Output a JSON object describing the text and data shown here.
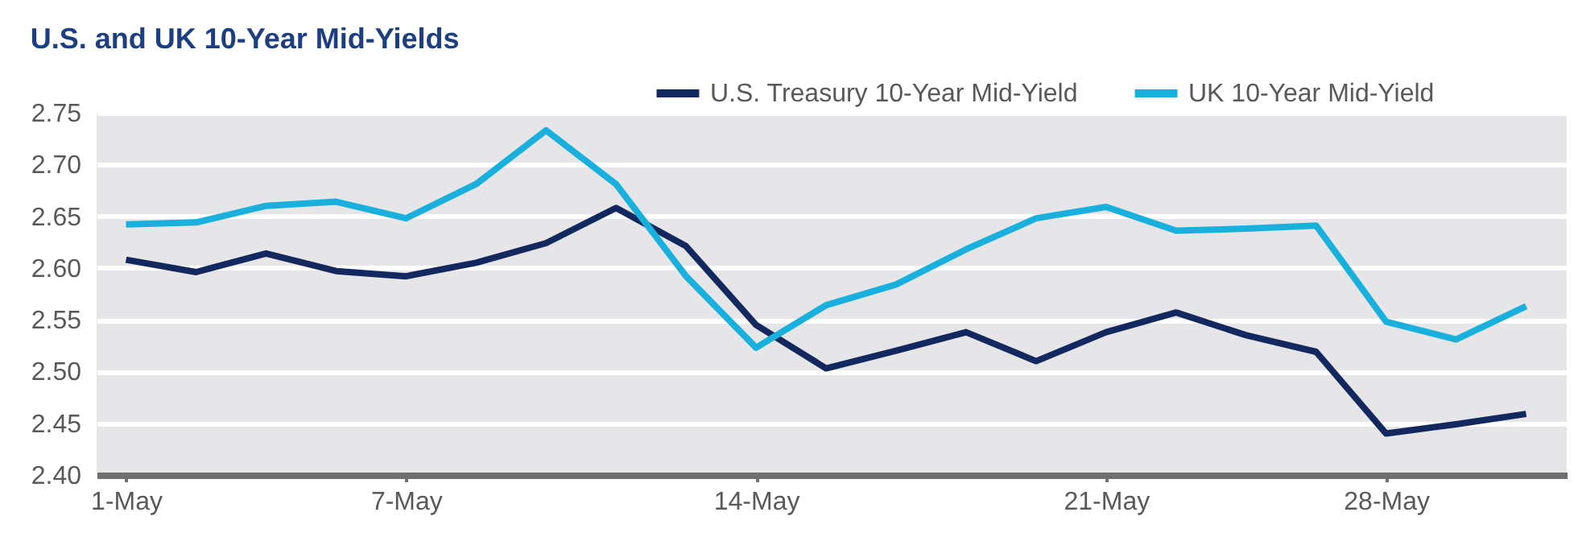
{
  "chart_data": {
    "type": "line",
    "title": "U.S. and UK 10-Year Mid-Yields",
    "categories": [
      "1-May",
      null,
      null,
      null,
      "7-May",
      null,
      null,
      null,
      null,
      "14-May",
      null,
      null,
      null,
      null,
      "21-May",
      null,
      null,
      null,
      "28-May",
      null,
      null
    ],
    "series": [
      {
        "name": "U.S. Treasury 10-Year Mid-Yield",
        "color": "#13285f",
        "values": [
          2.608,
          2.596,
          2.614,
          2.597,
          2.592,
          2.605,
          2.624,
          2.658,
          2.621,
          2.545,
          2.503,
          2.52,
          2.538,
          2.51,
          2.538,
          2.557,
          2.535,
          2.519,
          2.44,
          2.449,
          2.459
        ]
      },
      {
        "name": "UK 10-Year Mid-Yield",
        "color": "#1ab0dd",
        "values": [
          2.642,
          2.644,
          2.66,
          2.664,
          2.648,
          2.681,
          2.733,
          2.681,
          2.592,
          2.523,
          2.564,
          2.584,
          2.618,
          2.648,
          2.659,
          2.636,
          2.638,
          2.641,
          2.548,
          2.531,
          2.563
        ]
      }
    ],
    "ylim": [
      2.4,
      2.75
    ],
    "yticks": [
      {
        "value": 2.4,
        "label": "2.40"
      },
      {
        "value": 2.45,
        "label": "2.45"
      },
      {
        "value": 2.5,
        "label": "2.50"
      },
      {
        "value": 2.55,
        "label": "2.55"
      },
      {
        "value": 2.6,
        "label": "2.60"
      },
      {
        "value": 2.65,
        "label": "2.65"
      },
      {
        "value": 2.7,
        "label": "2.70"
      },
      {
        "value": 2.75,
        "label": "2.75"
      }
    ],
    "grid": "y",
    "legend": "top right",
    "marker": "none",
    "line_style": "solid"
  }
}
